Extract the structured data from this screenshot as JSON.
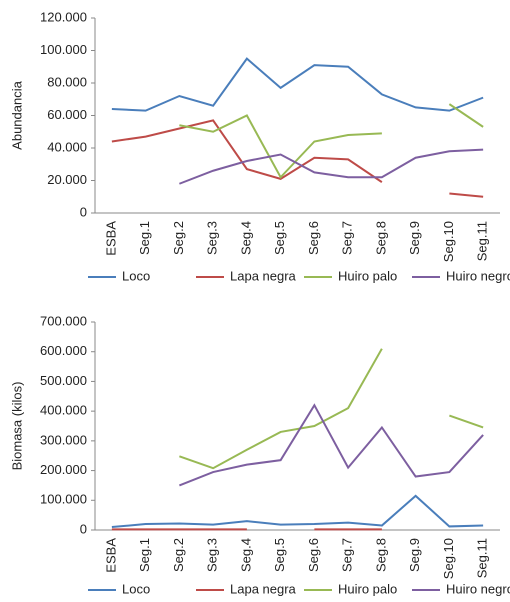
{
  "chart_data": [
    {
      "type": "line",
      "y_label": "Abundancia",
      "categories": [
        "ESBA",
        "Seg.1",
        "Seg.2",
        "Seg.3",
        "Seg.4",
        "Seg.5",
        "Seg.6",
        "Seg.7",
        "Seg.8",
        "Seg.9",
        "Seg.10",
        "Seg.11"
      ],
      "series": [
        {
          "name": "Loco",
          "color": "#4a7ebb",
          "values": [
            64000,
            63000,
            72000,
            66000,
            95000,
            77000,
            91000,
            90000,
            73000,
            65000,
            63000,
            71000
          ]
        },
        {
          "name": "Lapa negra",
          "color": "#be4b48",
          "values": [
            44000,
            47000,
            52000,
            57000,
            27000,
            21000,
            34000,
            33000,
            19000,
            null,
            12000,
            10000
          ]
        },
        {
          "name": "Huiro palo",
          "color": "#98b954",
          "values": [
            null,
            null,
            54000,
            50000,
            60000,
            22000,
            44000,
            48000,
            49000,
            null,
            67000,
            53000
          ]
        },
        {
          "name": "Huiro negro",
          "color": "#7d5fa0",
          "values": [
            null,
            null,
            18000,
            26000,
            32000,
            36000,
            25000,
            22000,
            22000,
            34000,
            38000,
            39000
          ]
        }
      ],
      "ylim": [
        0,
        120000
      ],
      "yticks": [
        0,
        {
          "value": 20000,
          "label": "20.000"
        },
        {
          "value": 40000,
          "label": "40.000"
        },
        {
          "value": 60000,
          "label": "60.000"
        },
        {
          "value": 80000,
          "label": "80.000"
        },
        {
          "value": 100000,
          "label": "100.000"
        },
        {
          "value": 120000,
          "label": "120.000"
        }
      ],
      "legend": "bottom"
    },
    {
      "type": "line",
      "y_label": "Biomasa (kilos)",
      "categories": [
        "ESBA",
        "Seg.1",
        "Seg.2",
        "Seg.3",
        "Seg.4",
        "Seg.5",
        "Seg.6",
        "Seg.7",
        "Seg.8",
        "Seg.9",
        "Seg.10",
        "Seg.11"
      ],
      "series": [
        {
          "name": "Loco",
          "color": "#4a7ebb",
          "values": [
            10000,
            20000,
            22000,
            18000,
            30000,
            18000,
            20000,
            25000,
            15000,
            115000,
            12000,
            15000
          ]
        },
        {
          "name": "Lapa negra",
          "color": "#be4b48",
          "values": [
            2000,
            2000,
            2000,
            2000,
            2000,
            null,
            2000,
            2000,
            2000,
            null,
            null,
            null
          ]
        },
        {
          "name": "Huiro palo",
          "color": "#98b954",
          "values": [
            null,
            null,
            248000,
            208000,
            270000,
            330000,
            350000,
            410000,
            610000,
            null,
            385000,
            345000
          ]
        },
        {
          "name": "Huiro negro",
          "color": "#7d5fa0",
          "values": [
            null,
            null,
            150000,
            195000,
            220000,
            235000,
            420000,
            210000,
            345000,
            180000,
            195000,
            320000
          ]
        }
      ],
      "ylim": [
        0,
        700000
      ],
      "yticks": [
        0,
        {
          "value": 100000,
          "label": "100.000"
        },
        {
          "value": 200000,
          "label": "200.000"
        },
        {
          "value": 300000,
          "label": "300.000"
        },
        {
          "value": 400000,
          "label": "400.000"
        },
        {
          "value": 500000,
          "label": "500.000"
        },
        {
          "value": 600000,
          "label": "600.000"
        },
        {
          "value": 700000,
          "label": "700.000"
        }
      ],
      "legend": "bottom"
    }
  ]
}
